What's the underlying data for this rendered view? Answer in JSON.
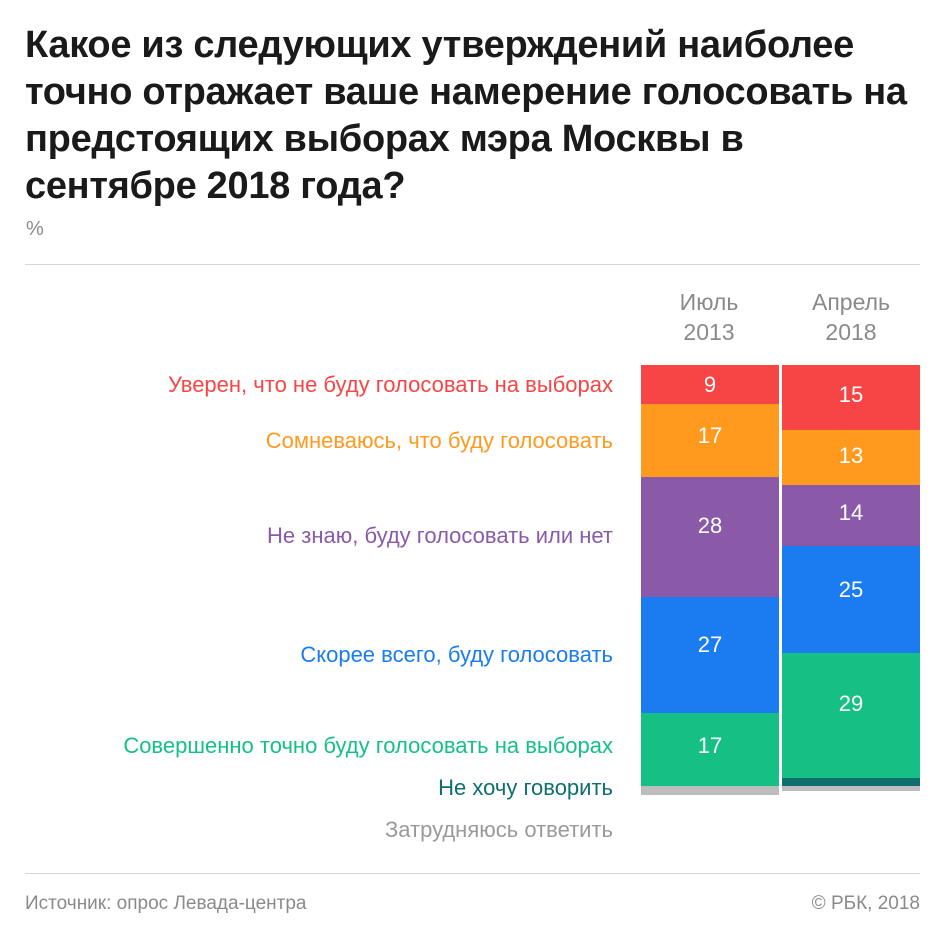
{
  "title": "Какое из следующих утверждений наиболее точно отражает ваше намерение голосовать на предстоящих выборах мэра Москвы в сентябре 2018 года?",
  "unit": "%",
  "footer": {
    "source": "Источник: опрос Левада-центра",
    "copyright": "© РБК, 2018"
  },
  "chart_data": {
    "type": "bar",
    "stacked": true,
    "orientation": "vertical",
    "ylim": [
      0,
      100
    ],
    "columns": [
      {
        "line1": "Июль",
        "line2": "2013"
      },
      {
        "line1": "Апрель",
        "line2": "2018"
      }
    ],
    "categories": [
      "Уверен, что не буду голосовать на выборах",
      "Сомневаюсь, что буду голосовать",
      "Не знаю, буду голосовать или нет",
      "Скорее всего, буду голосовать",
      "Совершенно точно буду голосовать на выборах",
      "Не хочу говорить",
      "Затрудняюсь ответить"
    ],
    "colors": [
      "#f74545",
      "#ff9a1f",
      "#8a5aa9",
      "#1a7cf0",
      "#16c084",
      "#0f6f6f",
      "#bdbdbd"
    ],
    "series": [
      {
        "values": [
          9,
          17,
          28,
          27,
          17,
          0,
          2
        ]
      },
      {
        "values": [
          15,
          13,
          14,
          25,
          29,
          2,
          1
        ]
      }
    ],
    "shown_labels": [
      true,
      true,
      true,
      true,
      true,
      false,
      false
    ]
  }
}
